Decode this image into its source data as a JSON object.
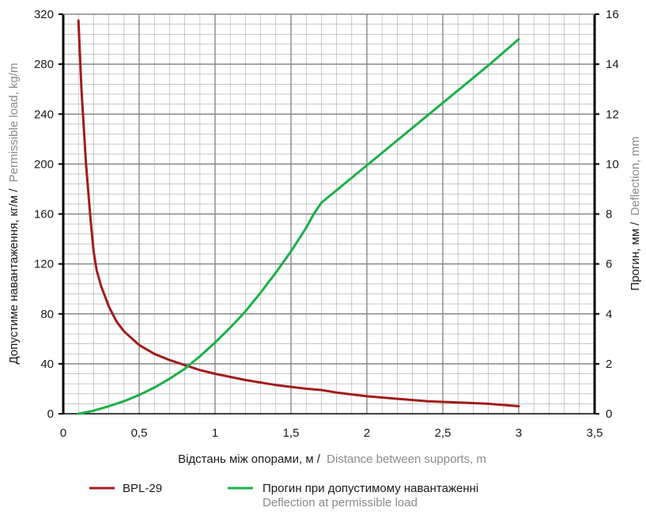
{
  "chart_data": {
    "type": "line",
    "xlabel": "Відстань між опорами, м /",
    "xlabel_en": "Distance between supports, m",
    "ylabel_left": "Допустиме навантаження, кг/м /",
    "ylabel_left_en": "Permissible load, kg/m",
    "ylabel_right": "Прогин, мм /",
    "ylabel_right_en": "Deflection, mm",
    "xlim": [
      0,
      3.5
    ],
    "ylim_left": [
      0,
      320
    ],
    "ylim_right": [
      0,
      16
    ],
    "x_ticks": [
      "0",
      "0,5",
      "1",
      "1,5",
      "2",
      "2,5",
      "3",
      "3,5"
    ],
    "y_left_ticks": [
      "0",
      "40",
      "80",
      "120",
      "160",
      "200",
      "240",
      "280",
      "320"
    ],
    "y_right_ticks": [
      "0",
      "2",
      "4",
      "6",
      "8",
      "10",
      "12",
      "14",
      "16"
    ],
    "grid": true,
    "legend_position": "bottom",
    "series": [
      {
        "name": "BPL-29",
        "axis": "left",
        "color": "#a01c1c",
        "x": [
          0.1,
          0.12,
          0.15,
          0.18,
          0.2,
          0.22,
          0.25,
          0.3,
          0.35,
          0.4,
          0.5,
          0.6,
          0.7,
          0.8,
          0.9,
          1.0,
          1.2,
          1.4,
          1.6,
          1.7,
          1.8,
          2.0,
          2.2,
          2.4,
          2.6,
          2.8,
          3.0
        ],
        "y": [
          315,
          260,
          200,
          155,
          130,
          115,
          102,
          86,
          74,
          66,
          55,
          48,
          43,
          39,
          35,
          32,
          27,
          23,
          20,
          19,
          17,
          14,
          12,
          10,
          9,
          8,
          6
        ]
      },
      {
        "name": "Прогин при допустимому навантаженні",
        "name_en": "Deflection at permissible load",
        "axis": "right",
        "color": "#1bb04a",
        "x": [
          0.1,
          0.2,
          0.3,
          0.4,
          0.5,
          0.6,
          0.7,
          0.8,
          0.9,
          1.0,
          1.1,
          1.2,
          1.3,
          1.4,
          1.5,
          1.6,
          1.65,
          1.7,
          1.75,
          1.8,
          2.0,
          2.2,
          2.4,
          2.6,
          2.8,
          3.0
        ],
        "y": [
          0,
          0.12,
          0.3,
          0.5,
          0.75,
          1.05,
          1.4,
          1.8,
          2.3,
          2.85,
          3.45,
          4.1,
          4.85,
          5.65,
          6.5,
          7.45,
          8.0,
          8.45,
          8.7,
          8.95,
          9.95,
          10.95,
          11.95,
          12.95,
          13.95,
          15.0
        ]
      }
    ]
  }
}
